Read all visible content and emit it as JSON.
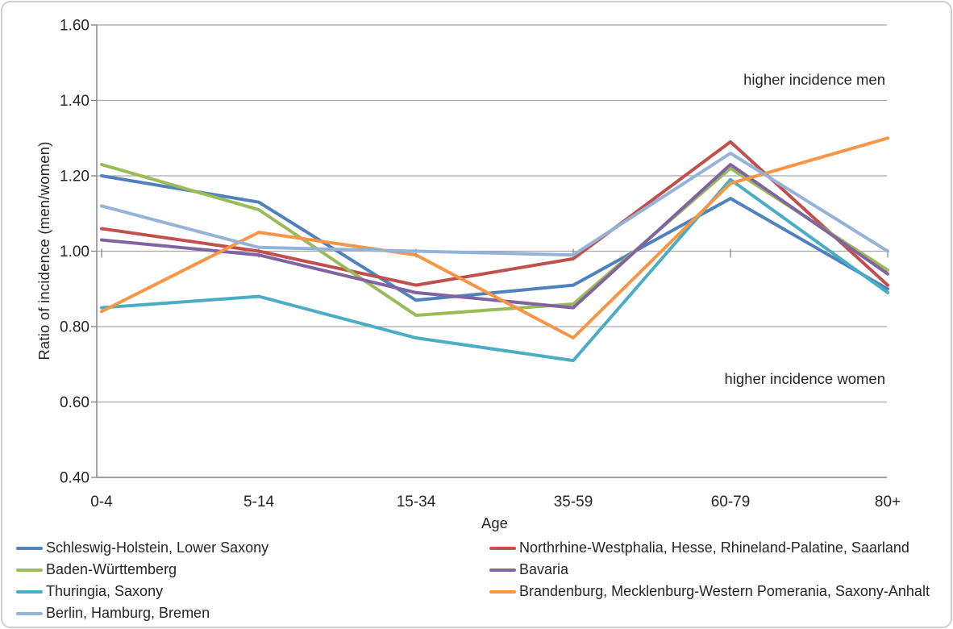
{
  "chart_data": {
    "type": "line",
    "title": "",
    "xlabel": "Age",
    "ylabel": "Ratio of incidence (men/women)",
    "categories": [
      "0-4",
      "5-14",
      "15-34",
      "35-59",
      "60-79",
      "80+"
    ],
    "ylim": [
      0.4,
      1.6
    ],
    "ytick_labels": [
      "0.40",
      "0.60",
      "0.80",
      "1.00",
      "1.20",
      "1.40",
      "1.60"
    ],
    "grid": true,
    "legend_position": "bottom, two columns",
    "annotations": [
      {
        "text": "higher incidence men",
        "placement": "top right, above 1.40 gridline"
      },
      {
        "text": "higher incidence women",
        "placement": "right, above 0.60 gridline"
      }
    ],
    "series": [
      {
        "name": "Schleswig-Holstein, Lower Saxony",
        "color": "#4F81BD",
        "values": [
          1.2,
          1.13,
          0.87,
          0.91,
          1.14,
          0.9
        ]
      },
      {
        "name": "Northrhine-Westphalia, Hesse, Rhineland-Palatine, Saarland",
        "color": "#C0504D",
        "values": [
          1.06,
          1.0,
          0.91,
          0.98,
          1.29,
          0.91
        ]
      },
      {
        "name": "Baden-Württemberg",
        "color": "#9BBB59",
        "values": [
          1.23,
          1.11,
          0.83,
          0.86,
          1.22,
          0.95
        ]
      },
      {
        "name": "Bavaria",
        "color": "#8064A2",
        "values": [
          1.03,
          0.99,
          0.89,
          0.85,
          1.23,
          0.94
        ]
      },
      {
        "name": "Thuringia, Saxony",
        "color": "#4BACC6",
        "values": [
          0.85,
          0.88,
          0.77,
          0.71,
          1.19,
          0.89
        ]
      },
      {
        "name": "Brandenburg, Mecklenburg-Western Pomerania,  Saxony-Anhalt",
        "color": "#F79646",
        "values": [
          0.84,
          1.05,
          0.99,
          0.77,
          1.18,
          1.3
        ]
      },
      {
        "name": "Berlin, Hamburg, Bremen",
        "color": "#95B3D7",
        "values": [
          1.12,
          1.01,
          1.0,
          0.99,
          1.26,
          1.0
        ]
      }
    ]
  },
  "legend": {
    "columns": [
      {
        "series_indexes": [
          0,
          2,
          4,
          6
        ]
      },
      {
        "series_indexes": [
          1,
          3,
          5
        ]
      }
    ]
  },
  "style": {
    "gridline_color": "#a6a6a6",
    "axis_color": "#808080",
    "text_color": "#262626",
    "line_width": 4
  }
}
